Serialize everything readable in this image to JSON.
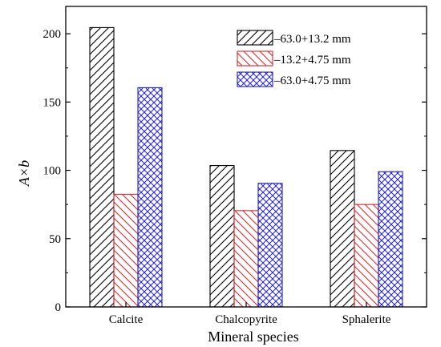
{
  "chart_data": {
    "type": "bar",
    "xlabel": "Mineral species",
    "ylabel": "A×b",
    "ylim": [
      0,
      220
    ],
    "yticks": [
      0,
      50,
      100,
      150,
      200
    ],
    "categories": [
      "Calcite",
      "Chalcopyrite",
      "Sphalerite"
    ],
    "series": [
      {
        "name": "–63.0+13.2 mm",
        "values": [
          204.5,
          103.5,
          114.5
        ],
        "color": "#000000",
        "pattern": "diagonal-hatch-right"
      },
      {
        "name": "–13.2+4.75 mm",
        "values": [
          82.5,
          70.5,
          75.0
        ],
        "color": "#d62728",
        "pattern": "diagonal-hatch-left"
      },
      {
        "name": "–63.0+4.75 mm",
        "values": [
          160.5,
          90.5,
          99.0
        ],
        "color": "#1f1fd6",
        "pattern": "crosshatch"
      }
    ],
    "legend_position": "top-right",
    "grid": false
  }
}
